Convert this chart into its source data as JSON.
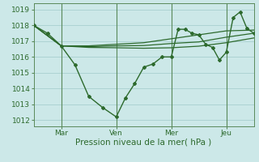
{
  "background_color": "#cce8e8",
  "grid_color": "#a8d0d0",
  "line_color": "#2d6a2d",
  "vline_color": "#5a8a5a",
  "xlabel": "Pression niveau de la mer( hPa )",
  "yticks": [
    1012,
    1013,
    1014,
    1015,
    1016,
    1017,
    1018,
    1019
  ],
  "ylim": [
    1011.6,
    1019.4
  ],
  "xlim": [
    0,
    96
  ],
  "xtick_positions": [
    12,
    36,
    60,
    84
  ],
  "xtick_labels": [
    "Mar",
    "Ven",
    "Mer",
    "Jeu"
  ],
  "vline_positions": [
    12,
    36,
    60,
    84
  ],
  "main_x": [
    0,
    6,
    12,
    18,
    24,
    30,
    36,
    40,
    44,
    48,
    52,
    56,
    60,
    63,
    66,
    69,
    72,
    75,
    78,
    81,
    84,
    87,
    90,
    93,
    96
  ],
  "main_y": [
    1018.0,
    1017.5,
    1016.7,
    1015.5,
    1013.5,
    1012.8,
    1012.2,
    1013.4,
    1014.3,
    1015.35,
    1015.55,
    1016.0,
    1016.0,
    1017.75,
    1017.75,
    1017.5,
    1017.4,
    1016.8,
    1016.6,
    1015.8,
    1016.3,
    1018.5,
    1018.85,
    1017.8,
    1017.5
  ],
  "trend1_x": [
    0,
    12,
    24,
    36,
    48,
    60,
    72,
    84,
    96
  ],
  "trend1_y": [
    1018.0,
    1016.7,
    1016.7,
    1016.8,
    1016.9,
    1017.15,
    1017.4,
    1017.65,
    1017.7
  ],
  "trend2_x": [
    0,
    12,
    24,
    36,
    48,
    60,
    72,
    84,
    96
  ],
  "trend2_y": [
    1018.0,
    1016.7,
    1016.65,
    1016.7,
    1016.72,
    1016.85,
    1016.95,
    1017.25,
    1017.5
  ],
  "trend3_x": [
    0,
    12,
    24,
    36,
    48,
    60,
    72,
    84,
    96
  ],
  "trend3_y": [
    1018.0,
    1016.7,
    1016.6,
    1016.58,
    1016.55,
    1016.58,
    1016.68,
    1016.9,
    1017.2
  ]
}
